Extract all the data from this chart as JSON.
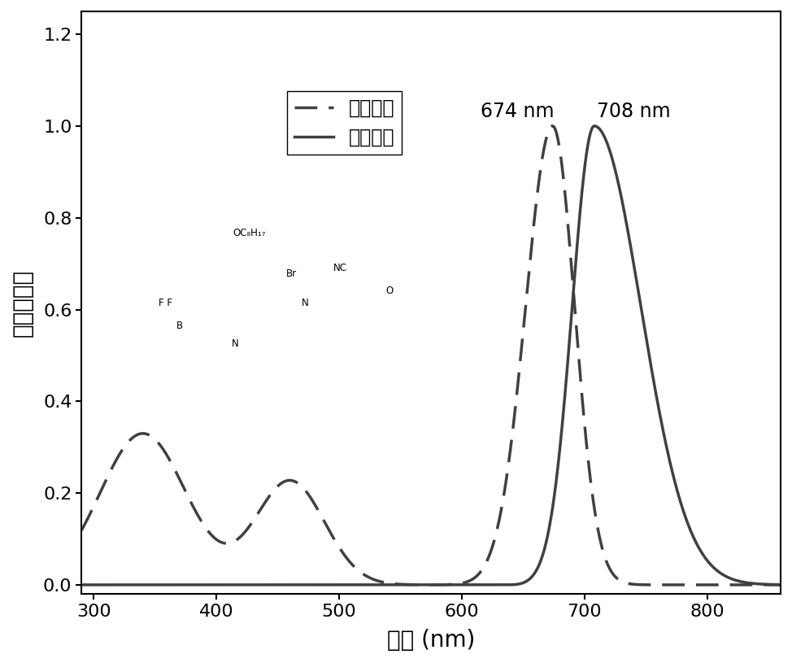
{
  "title": "",
  "xlabel": "波长 (nm)",
  "ylabel": "归一化强度",
  "xlim": [
    290,
    860
  ],
  "ylim": [
    -0.02,
    1.25
  ],
  "yticks": [
    0.0,
    0.2,
    0.4,
    0.6,
    0.8,
    1.0,
    1.2
  ],
  "xticks": [
    300,
    400,
    500,
    600,
    700,
    800
  ],
  "line_color": "#404040",
  "absorption_peak_nm": 674,
  "absorption_peak_label": "674 nm",
  "emission_peak_nm": 708,
  "emission_peak_label": "708 nm",
  "legend_absorption": "吸收曲线",
  "legend_emission": "发射曲线",
  "background_color": "#ffffff"
}
